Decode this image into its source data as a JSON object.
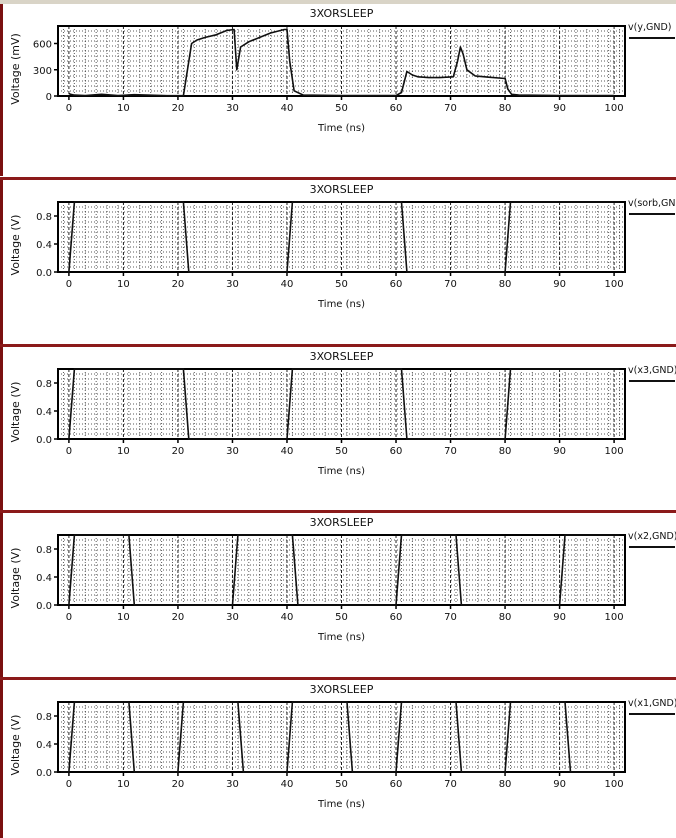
{
  "chart_data": [
    {
      "type": "line",
      "title": "3XORSLEEP",
      "xlabel": "Time (ns)",
      "ylabel": "Voltage (mV)",
      "legend": "v(y,GND)",
      "xlim": [
        -2,
        102
      ],
      "ylim": [
        0,
        800
      ],
      "xticks": [
        0,
        10,
        20,
        30,
        40,
        50,
        60,
        70,
        80,
        90,
        100
      ],
      "yticks": [
        0,
        300,
        600
      ],
      "ytick_labels": [
        "0",
        "300",
        "600"
      ],
      "grid": true,
      "series": [
        {
          "name": "v(y,GND)",
          "x": [
            0,
            0.3,
            1,
            3,
            6,
            9,
            12,
            18,
            21,
            21.5,
            22.5,
            23.5,
            25,
            27,
            29,
            30.3,
            30.8,
            31.5,
            33,
            35,
            37,
            39.5,
            40,
            40.5,
            41.3,
            43,
            50,
            60,
            61,
            62,
            63,
            64,
            66,
            68,
            70.5,
            71.3,
            71.8,
            72.3,
            73,
            74.5,
            77,
            80,
            80.5,
            81.2,
            82.5,
            90,
            100
          ],
          "y": [
            30,
            20,
            10,
            5,
            20,
            6,
            15,
            3,
            5,
            200,
            600,
            640,
            670,
            700,
            750,
            760,
            300,
            560,
            620,
            670,
            720,
            760,
            760,
            400,
            60,
            10,
            5,
            5,
            40,
            280,
            240,
            220,
            210,
            210,
            220,
            400,
            560,
            480,
            300,
            230,
            215,
            200,
            80,
            20,
            10,
            5,
            5
          ]
        }
      ]
    },
    {
      "type": "line",
      "title": "3XORSLEEP",
      "xlabel": "Time (ns)",
      "ylabel": "Voltage (V)",
      "legend": "v(sorb,GND)",
      "xlim": [
        -2,
        102
      ],
      "ylim": [
        0,
        1
      ],
      "xticks": [
        0,
        10,
        20,
        30,
        40,
        50,
        60,
        70,
        80,
        90,
        100
      ],
      "yticks": [
        0,
        0.4,
        0.8
      ],
      "ytick_labels": [
        "0.0",
        "0.4",
        "0.8"
      ],
      "grid": true,
      "series": [
        {
          "name": "v(sorb,GND)",
          "x": [
            -1.5,
            0,
            1,
            21,
            22,
            40,
            41,
            61,
            62,
            80,
            81,
            101
          ],
          "y": [
            0,
            0,
            1,
            1,
            0,
            0,
            1,
            1,
            0,
            0,
            1,
            1
          ]
        }
      ]
    },
    {
      "type": "line",
      "title": "3XORSLEEP",
      "xlabel": "Time (ns)",
      "ylabel": "Voltage (V)",
      "legend": "v(x3,GND)",
      "xlim": [
        -2,
        102
      ],
      "ylim": [
        0,
        1
      ],
      "xticks": [
        0,
        10,
        20,
        30,
        40,
        50,
        60,
        70,
        80,
        90,
        100
      ],
      "yticks": [
        0,
        0.4,
        0.8
      ],
      "ytick_labels": [
        "0.0",
        "0.4",
        "0.8"
      ],
      "grid": true,
      "series": [
        {
          "name": "v(x3,GND)",
          "x": [
            -1.5,
            0,
            1,
            21,
            22,
            40,
            41,
            61,
            62,
            80,
            81,
            101
          ],
          "y": [
            0,
            0,
            1,
            1,
            0,
            0,
            1,
            1,
            0,
            0,
            1,
            1
          ]
        }
      ]
    },
    {
      "type": "line",
      "title": "3XORSLEEP",
      "xlabel": "Time (ns)",
      "ylabel": "Voltage (V)",
      "legend": "v(x2,GND)",
      "xlim": [
        -2,
        102
      ],
      "ylim": [
        0,
        1
      ],
      "xticks": [
        0,
        10,
        20,
        30,
        40,
        50,
        60,
        70,
        80,
        90,
        100
      ],
      "yticks": [
        0,
        0.4,
        0.8
      ],
      "ytick_labels": [
        "0.0",
        "0.4",
        "0.8"
      ],
      "grid": true,
      "series": [
        {
          "name": "v(x2,GND)",
          "x": [
            -1.5,
            0,
            1,
            11,
            12,
            30,
            31,
            41,
            42,
            60,
            61,
            71,
            72,
            90,
            91,
            101
          ],
          "y": [
            0,
            0,
            1,
            1,
            0,
            0,
            1,
            1,
            0,
            0,
            1,
            1,
            0,
            0,
            1,
            1
          ]
        }
      ]
    },
    {
      "type": "line",
      "title": "3XORSLEEP",
      "xlabel": "Time (ns)",
      "ylabel": "Voltage (V)",
      "legend": "v(x1,GND)",
      "xlim": [
        -2,
        102
      ],
      "ylim": [
        0,
        1
      ],
      "xticks": [
        0,
        10,
        20,
        30,
        40,
        50,
        60,
        70,
        80,
        90,
        100
      ],
      "yticks": [
        0,
        0.4,
        0.8
      ],
      "ytick_labels": [
        "0.0",
        "0.4",
        "0.8"
      ],
      "grid": true,
      "series": [
        {
          "name": "v(x1,GND)",
          "x": [
            -1.5,
            0,
            1,
            11,
            12,
            20,
            21,
            31,
            32,
            40,
            41,
            51,
            52,
            60,
            61,
            71,
            72,
            80,
            81,
            91,
            92,
            101
          ],
          "y": [
            0,
            0,
            1,
            1,
            0,
            0,
            1,
            1,
            0,
            0,
            1,
            1,
            0,
            0,
            1,
            1,
            0,
            0,
            1,
            1,
            0,
            0
          ]
        }
      ]
    }
  ],
  "colors": {
    "trace": "#111111",
    "grid": "#222222",
    "separator": "#8b1a1a",
    "background": "#ffffff"
  }
}
